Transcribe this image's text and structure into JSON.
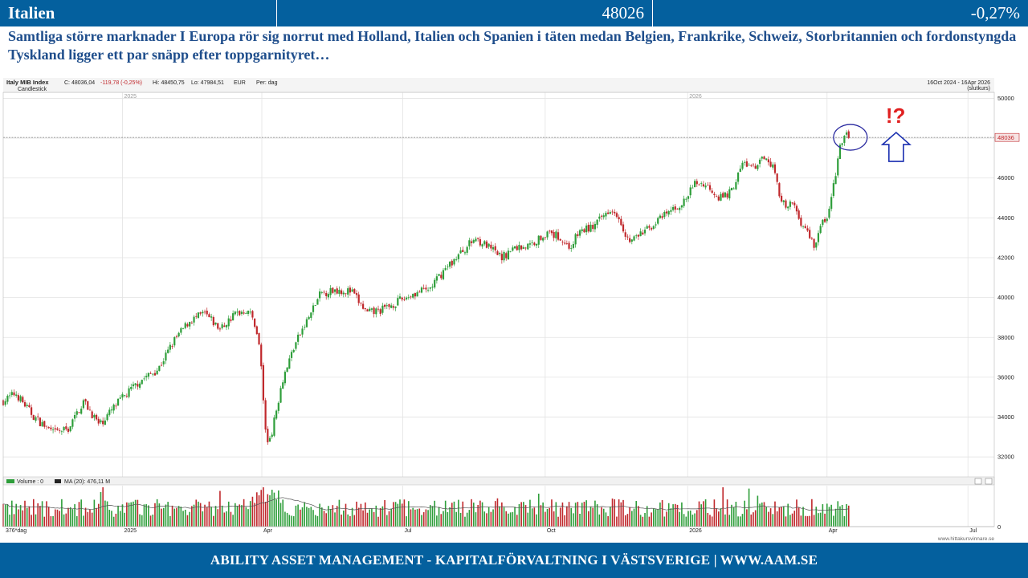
{
  "header": {
    "name": "Italien",
    "value": "48026",
    "change": "-0,27%"
  },
  "headline": "Samtliga större marknader I Europa rör sig norrut med Holland, Italien och Spanien i täten medan Belgien, Frankrike, Schweiz, Storbritannien och fordonstyngda Tyskland ligger ett par snäpp efter toppgarnityret…",
  "chart_data": {
    "type": "candlestick",
    "title": "Italy MIB Index",
    "style_label": "Candlestick",
    "quote": {
      "close_label": "C: 48036,04",
      "change_label": "-119,78 (-0,25%)",
      "high_label": "Hi: 48450,75",
      "low_label": "Lo: 47984,51",
      "currency": "EUR",
      "period": "Per: dag"
    },
    "range_label": "16Oct 2024 - 16Apr 2026",
    "range_note": "(slutkurs)",
    "last_value_label": "48036",
    "last_value": 48036,
    "ylim": [
      31000,
      50300
    ],
    "y_ticks": [
      32000,
      34000,
      36000,
      38000,
      40000,
      42000,
      44000,
      46000,
      48000,
      50000
    ],
    "year_labels": [
      {
        "text": "2025",
        "day": 77
      },
      {
        "text": "2026",
        "day": 442
      }
    ],
    "x_ticks": [
      {
        "text": "2025",
        "day": 77
      },
      {
        "text": "Apr",
        "day": 167
      },
      {
        "text": "Jul",
        "day": 258
      },
      {
        "text": "Oct",
        "day": 350
      },
      {
        "text": "2026",
        "day": 442
      },
      {
        "text": "Apr",
        "day": 532
      },
      {
        "text": "Jul",
        "day": 623
      }
    ],
    "x_span_days": [
      0,
      640
    ],
    "last_day": 547,
    "close_anchors": [
      [
        0,
        34800
      ],
      [
        8,
        35200
      ],
      [
        20,
        34000
      ],
      [
        32,
        33200
      ],
      [
        42,
        33400
      ],
      [
        52,
        34800
      ],
      [
        62,
        33600
      ],
      [
        75,
        34800
      ],
      [
        88,
        35800
      ],
      [
        100,
        36400
      ],
      [
        110,
        37800
      ],
      [
        120,
        38800
      ],
      [
        130,
        39200
      ],
      [
        140,
        38400
      ],
      [
        150,
        39200
      ],
      [
        158,
        39400
      ],
      [
        163,
        38600
      ],
      [
        166,
        37200
      ],
      [
        170,
        32600
      ],
      [
        174,
        33400
      ],
      [
        180,
        35800
      ],
      [
        188,
        37600
      ],
      [
        196,
        38800
      ],
      [
        205,
        40200
      ],
      [
        215,
        40400
      ],
      [
        225,
        40300
      ],
      [
        235,
        39200
      ],
      [
        245,
        39400
      ],
      [
        255,
        39800
      ],
      [
        265,
        40200
      ],
      [
        275,
        40400
      ],
      [
        285,
        41400
      ],
      [
        295,
        42200
      ],
      [
        305,
        43000
      ],
      [
        312,
        42600
      ],
      [
        322,
        42000
      ],
      [
        330,
        42500
      ],
      [
        340,
        42600
      ],
      [
        350,
        43200
      ],
      [
        358,
        43100
      ],
      [
        366,
        42500
      ],
      [
        372,
        43300
      ],
      [
        382,
        43600
      ],
      [
        392,
        44500
      ],
      [
        397,
        44200
      ],
      [
        404,
        42800
      ],
      [
        412,
        43200
      ],
      [
        422,
        43800
      ],
      [
        432,
        44400
      ],
      [
        440,
        44800
      ],
      [
        447,
        45800
      ],
      [
        455,
        45600
      ],
      [
        463,
        45000
      ],
      [
        470,
        45300
      ],
      [
        478,
        46800
      ],
      [
        486,
        46400
      ],
      [
        492,
        47200
      ],
      [
        497,
        46600
      ],
      [
        502,
        45000
      ],
      [
        506,
        44400
      ],
      [
        510,
        44800
      ],
      [
        515,
        43800
      ],
      [
        520,
        43200
      ],
      [
        524,
        42600
      ],
      [
        528,
        43600
      ],
      [
        533,
        44200
      ],
      [
        536,
        45500
      ],
      [
        540,
        47400
      ],
      [
        544,
        48200
      ],
      [
        547,
        48036
      ]
    ],
    "volume": {
      "label": "Volume : 0",
      "ma_label": "MA (20): 476,11 M",
      "zero_label": "0",
      "count_label": "376*dag"
    },
    "annotation": {
      "marks": "!?",
      "circle_day": 545,
      "circle_value": 48000,
      "arrow": "up"
    },
    "watermark": "www.hittakursvinnare.se",
    "colors": {
      "up": "#2e9e3a",
      "down": "#c0282c",
      "grid": "#e3e3e3",
      "last_line": "#9a9a9a",
      "ma_line": "#555555",
      "circle": "#2a2aa0",
      "arrow": "#1a2fb0",
      "marks": "#e02020"
    }
  },
  "footer": {
    "text": "ABILITY ASSET MANAGEMENT -  KAPITALFÖRVALTNING I VÄSTSVERIGE   |   WWW.AAM.SE"
  }
}
